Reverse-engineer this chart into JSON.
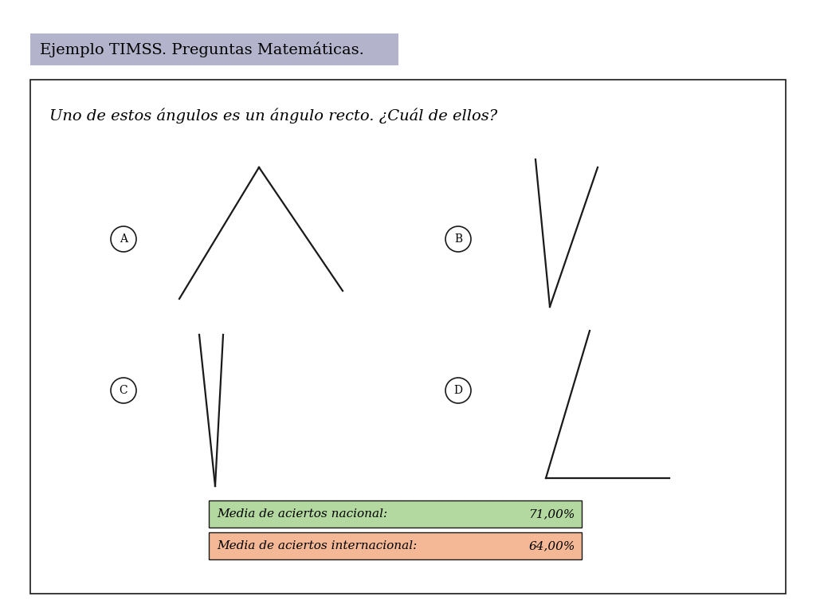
{
  "title": "Ejemplo TIMSS. Preguntas Matemáticas.",
  "title_bg": "#b3b3cc",
  "question": "Uno de estos ángulos es un ángulo recto. ¿Cuál de ellos?",
  "nacional_label": "Media de aciertos nacional:",
  "nacional_value": "71,00%",
  "nacional_bg": "#b3d9a0",
  "internacional_label": "Media de aciertos internacional:",
  "internacional_value": "64,00%",
  "internacional_bg": "#f4b896",
  "bg_color": "#ffffff",
  "outer_box_color": "#1a1a1a",
  "line_color": "#1a1a1a",
  "title_fontsize": 14,
  "question_fontsize": 14,
  "stats_fontsize": 11
}
